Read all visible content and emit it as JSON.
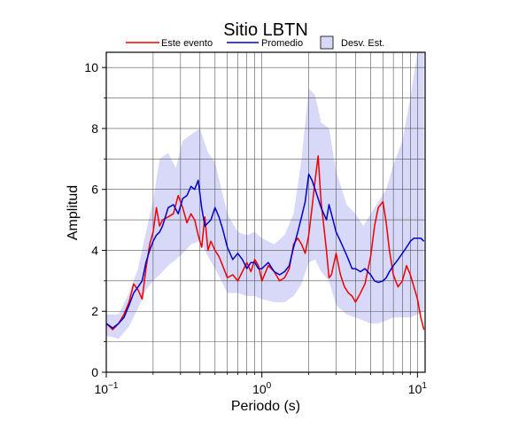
{
  "chart_data": {
    "type": "line",
    "title": "Sitio LBTN",
    "xlabel": "Periodo (s)",
    "ylabel": "Amplitud",
    "xscale": "log",
    "xlim": [
      0.1,
      11.2
    ],
    "ylim": [
      0,
      10.5
    ],
    "grid": true,
    "legend_position": "top",
    "x_ticks": [
      {
        "value": 0.1,
        "base": "10",
        "exp": "−1"
      },
      {
        "value": 1,
        "base": "10",
        "exp": "0"
      },
      {
        "value": 10,
        "base": "10",
        "exp": "1"
      }
    ],
    "y_ticks": [
      0,
      2,
      4,
      6,
      8,
      10
    ],
    "legend": [
      {
        "label": "Este evento",
        "kind": "line",
        "color": "#ee0000"
      },
      {
        "label": "Promedio",
        "kind": "line",
        "color": "#0000cc"
      },
      {
        "label": "Desv. Est.",
        "kind": "box",
        "color": "#d8d8f8"
      }
    ],
    "series": [
      {
        "name": "Este evento",
        "color": "#ee0000",
        "x": [
          0.1,
          0.11,
          0.12,
          0.13,
          0.14,
          0.15,
          0.16,
          0.17,
          0.18,
          0.19,
          0.2,
          0.21,
          0.22,
          0.23,
          0.25,
          0.27,
          0.29,
          0.31,
          0.33,
          0.35,
          0.37,
          0.39,
          0.41,
          0.43,
          0.45,
          0.47,
          0.5,
          0.53,
          0.56,
          0.6,
          0.65,
          0.7,
          0.75,
          0.8,
          0.85,
          0.9,
          0.95,
          1.0,
          1.1,
          1.2,
          1.3,
          1.4,
          1.5,
          1.6,
          1.7,
          1.8,
          1.9,
          2.0,
          2.1,
          2.2,
          2.3,
          2.4,
          2.5,
          2.6,
          2.7,
          2.8,
          3.0,
          3.2,
          3.4,
          3.6,
          3.8,
          4.0,
          4.3,
          4.6,
          5.0,
          5.3,
          5.6,
          6.0,
          6.3,
          6.6,
          7.0,
          7.5,
          8.0,
          8.5,
          9.0,
          9.5,
          10.0,
          10.5,
          11.0
        ],
        "y": [
          1.6,
          1.4,
          1.6,
          1.9,
          2.3,
          2.9,
          2.7,
          2.4,
          3.4,
          4.2,
          4.6,
          5.4,
          4.8,
          5.0,
          5.1,
          5.2,
          5.8,
          5.4,
          4.9,
          5.2,
          5.0,
          4.5,
          4.1,
          5.1,
          4.0,
          4.3,
          4.0,
          3.8,
          3.5,
          3.1,
          3.2,
          3.0,
          3.3,
          3.6,
          3.3,
          3.7,
          3.5,
          3.0,
          3.5,
          3.3,
          3.0,
          3.1,
          3.4,
          4.2,
          4.4,
          4.2,
          3.9,
          4.5,
          5.4,
          6.3,
          7.1,
          5.6,
          4.8,
          4.0,
          3.1,
          3.2,
          3.9,
          3.2,
          2.8,
          2.6,
          2.5,
          2.3,
          2.6,
          2.9,
          3.8,
          4.8,
          5.4,
          5.6,
          4.9,
          4.0,
          3.2,
          2.8,
          3.0,
          3.5,
          3.2,
          2.8,
          2.4,
          1.8,
          1.4
        ]
      },
      {
        "name": "Promedio",
        "color": "#0000cc",
        "x": [
          0.1,
          0.11,
          0.12,
          0.13,
          0.14,
          0.15,
          0.16,
          0.17,
          0.18,
          0.19,
          0.2,
          0.21,
          0.22,
          0.23,
          0.25,
          0.27,
          0.29,
          0.31,
          0.33,
          0.35,
          0.37,
          0.39,
          0.41,
          0.43,
          0.45,
          0.47,
          0.5,
          0.53,
          0.56,
          0.6,
          0.65,
          0.7,
          0.75,
          0.8,
          0.85,
          0.9,
          0.95,
          1.0,
          1.1,
          1.2,
          1.3,
          1.4,
          1.5,
          1.6,
          1.7,
          1.8,
          1.9,
          2.0,
          2.1,
          2.2,
          2.3,
          2.4,
          2.5,
          2.6,
          2.7,
          2.8,
          3.0,
          3.2,
          3.4,
          3.6,
          3.8,
          4.0,
          4.3,
          4.6,
          5.0,
          5.3,
          5.6,
          6.0,
          6.3,
          6.6,
          7.0,
          7.5,
          8.0,
          8.5,
          9.0,
          9.5,
          10.0,
          10.5,
          11.0
        ],
        "y": [
          1.6,
          1.45,
          1.6,
          1.8,
          2.2,
          2.6,
          2.8,
          3.0,
          3.6,
          4.0,
          4.3,
          4.5,
          4.6,
          4.8,
          5.4,
          5.5,
          5.2,
          5.7,
          5.8,
          6.1,
          6.0,
          6.3,
          5.4,
          4.8,
          4.9,
          5.0,
          5.4,
          5.1,
          4.7,
          4.1,
          3.7,
          3.9,
          3.7,
          3.4,
          3.6,
          3.6,
          3.4,
          3.4,
          3.6,
          3.3,
          3.2,
          3.3,
          3.5,
          4.1,
          4.6,
          5.1,
          5.6,
          6.5,
          6.3,
          6.0,
          5.7,
          5.4,
          5.2,
          5.0,
          5.5,
          5.2,
          4.6,
          4.3,
          4.0,
          3.7,
          3.4,
          3.4,
          3.3,
          3.4,
          3.2,
          3.0,
          2.95,
          3.0,
          3.1,
          3.3,
          3.5,
          3.7,
          3.9,
          4.1,
          4.3,
          4.4,
          4.4,
          4.4,
          4.3
        ]
      }
    ],
    "band": {
      "name": "Desv. Est.",
      "color": "#d8d8f8",
      "x": [
        0.1,
        0.12,
        0.14,
        0.16,
        0.18,
        0.2,
        0.22,
        0.25,
        0.28,
        0.31,
        0.35,
        0.4,
        0.45,
        0.5,
        0.55,
        0.6,
        0.7,
        0.8,
        0.9,
        1.0,
        1.2,
        1.4,
        1.6,
        1.8,
        2.0,
        2.2,
        2.4,
        2.7,
        3.0,
        3.5,
        4.0,
        4.5,
        5.0,
        5.6,
        6.3,
        7.0,
        8.0,
        9.0,
        10.0,
        11.0
      ],
      "upper": [
        1.9,
        1.9,
        2.6,
        3.4,
        4.6,
        5.6,
        7.0,
        7.2,
        6.7,
        7.6,
        7.8,
        8.0,
        7.2,
        6.9,
        6.0,
        5.2,
        4.6,
        4.5,
        4.6,
        4.4,
        4.2,
        4.5,
        5.2,
        7.0,
        9.3,
        9.1,
        8.2,
        8.0,
        6.6,
        5.5,
        5.2,
        4.8,
        5.2,
        5.6,
        6.0,
        6.8,
        7.6,
        9.0,
        10.5,
        10.5
      ],
      "lower": [
        1.2,
        1.1,
        1.5,
        2.1,
        2.7,
        3.0,
        3.2,
        3.5,
        3.7,
        3.9,
        4.2,
        4.3,
        3.8,
        3.4,
        3.0,
        2.6,
        2.6,
        2.5,
        2.5,
        2.4,
        2.3,
        2.3,
        2.5,
        2.9,
        3.6,
        3.7,
        3.3,
        3.0,
        2.2,
        1.9,
        1.8,
        1.7,
        1.6,
        1.6,
        1.7,
        1.8,
        1.8,
        1.8,
        1.9,
        2.0
      ]
    }
  }
}
